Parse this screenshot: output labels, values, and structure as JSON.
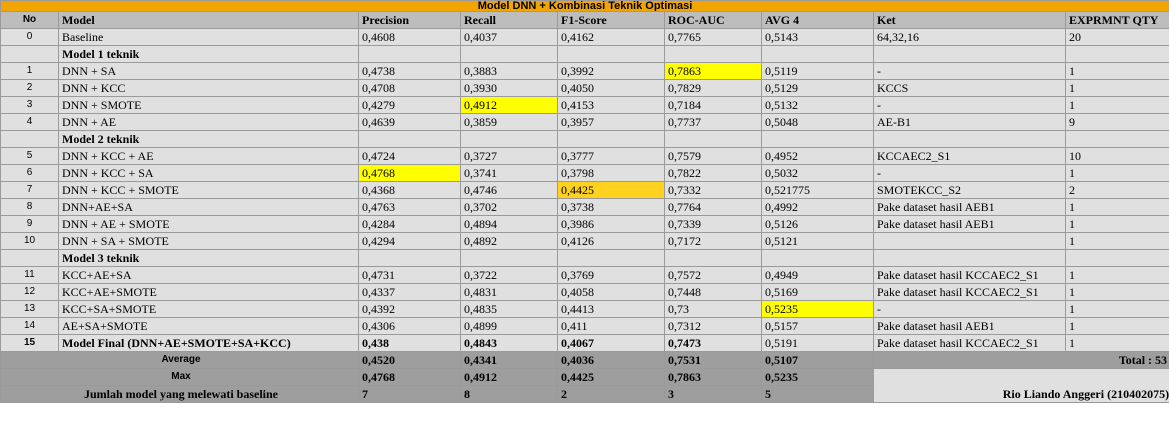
{
  "title": "Model DNN + Kombinasi Teknik Optimasi",
  "headers": {
    "no": "No",
    "model": "Model",
    "precision": "Precision",
    "recall": "Recall",
    "f1": "F1-Score",
    "rocauc": "ROC-AUC",
    "avg4": "AVG 4",
    "ket": "Ket",
    "qty": "EXPRMNT QTY"
  },
  "baseline": {
    "no": "0",
    "model": "Baseline",
    "precision": "0,4608",
    "recall": "0,4037",
    "f1": "0,4162",
    "rocauc": "0,7765",
    "avg4": "0,5143",
    "ket": "64,32,16",
    "qty": "20"
  },
  "sections": {
    "s1": "Model 1 teknik",
    "s2": "Model 2 teknik",
    "s3": "Model 3 teknik"
  },
  "rows": [
    {
      "no": "1",
      "model": "DNN + SA",
      "precision": "0,4738",
      "recall": "0,3883",
      "f1": "0,3992",
      "rocauc": "0,7863",
      "avg4": "0,5119",
      "ket": "-",
      "qty": "1"
    },
    {
      "no": "2",
      "model": "DNN + KCC",
      "precision": "0,4708",
      "recall": "0,3930",
      "f1": "0,4050",
      "rocauc": "0,7829",
      "avg4": "0,5129",
      "ket": "KCCS",
      "qty": "1"
    },
    {
      "no": "3",
      "model": "DNN + SMOTE",
      "precision": "0,4279",
      "recall": "0,4912",
      "f1": "0,4153",
      "rocauc": "0,7184",
      "avg4": "0,5132",
      "ket": "-",
      "qty": "1"
    },
    {
      "no": "4",
      "model": "DNN + AE",
      "precision": "0,4639",
      "recall": "0,3859",
      "f1": "0,3957",
      "rocauc": "0,7737",
      "avg4": "0,5048",
      "ket": "AE-B1",
      "qty": "9"
    },
    {
      "no": "5",
      "model": "DNN + KCC + AE",
      "precision": "0,4724",
      "recall": "0,3727",
      "f1": "0,3777",
      "rocauc": "0,7579",
      "avg4": "0,4952",
      "ket": "KCCAEC2_S1",
      "qty": "10"
    },
    {
      "no": "6",
      "model": "DNN + KCC + SA",
      "precision": "0,4768",
      "recall": "0,3741",
      "f1": "0,3798",
      "rocauc": "0,7822",
      "avg4": "0,5032",
      "ket": "-",
      "qty": "1"
    },
    {
      "no": "7",
      "model": "DNN + KCC + SMOTE",
      "precision": "0,4368",
      "recall": "0,4746",
      "f1": "0,4425",
      "rocauc": "0,7332",
      "avg4": "0,521775",
      "ket": "SMOTEKCC_S2",
      "qty": "2"
    },
    {
      "no": "8",
      "model": "DNN+AE+SA",
      "precision": "0,4763",
      "recall": "0,3702",
      "f1": "0,3738",
      "rocauc": "0,7764",
      "avg4": "0,4992",
      "ket": "Pake dataset hasil AEB1",
      "qty": "1"
    },
    {
      "no": "9",
      "model": "DNN + AE + SMOTE",
      "precision": "0,4284",
      "recall": "0,4894",
      "f1": "0,3986",
      "rocauc": "0,7339",
      "avg4": "0,5126",
      "ket": "Pake dataset hasil AEB1",
      "qty": "1"
    },
    {
      "no": "10",
      "model": "DNN + SA + SMOTE",
      "precision": "0,4294",
      "recall": "0,4892",
      "f1": "0,4126",
      "rocauc": "0,7172",
      "avg4": "0,5121",
      "ket": "",
      "qty": "1"
    },
    {
      "no": "11",
      "model": "KCC+AE+SA",
      "precision": "0,4731",
      "recall": "0,3722",
      "f1": "0,3769",
      "rocauc": "0,7572",
      "avg4": "0,4949",
      "ket": "Pake dataset hasil KCCAEC2_S1",
      "qty": "1"
    },
    {
      "no": "12",
      "model": "KCC+AE+SMOTE",
      "precision": "0,4337",
      "recall": "0,4831",
      "f1": "0,4058",
      "rocauc": "0,7448",
      "avg4": "0,5169",
      "ket": "Pake dataset hasil KCCAEC2_S1",
      "qty": "1"
    },
    {
      "no": "13",
      "model": "KCC+SA+SMOTE",
      "precision": "0,4392",
      "recall": "0,4835",
      "f1": "0,4413",
      "rocauc": "0,73",
      "avg4": "0,5235",
      "ket": "-",
      "qty": "1"
    },
    {
      "no": "14",
      "model": "AE+SA+SMOTE",
      "precision": "0,4306",
      "recall": "0,4899",
      "f1": "0,411",
      "rocauc": "0,7312",
      "avg4": "0,5157",
      "ket": "Pake dataset hasil AEB1",
      "qty": "1"
    },
    {
      "no": "15",
      "model": "Model  Final (DNN+AE+SMOTE+SA+KCC)",
      "precision": "0,438",
      "recall": "0,4843",
      "f1": "0,4067",
      "rocauc": "0,7473",
      "avg4": "0,5191",
      "ket": "Pake dataset hasil KCCAEC2_S1",
      "qty": "1"
    }
  ],
  "summary": {
    "average": {
      "label": "Average",
      "precision": "0,4520",
      "recall": "0,4341",
      "f1": "0,4036",
      "rocauc": "0,7531",
      "avg4": "0,5107"
    },
    "max": {
      "label": "Max",
      "precision": "0,4768",
      "recall": "0,4912",
      "f1": "0,4425",
      "rocauc": "0,7863",
      "avg4": "0,5235"
    },
    "count": {
      "label": "Jumlah model yang melewati baseline",
      "precision": "7",
      "recall": "8",
      "f1": "2",
      "rocauc": "3",
      "avg4": "5"
    },
    "total": "Total : 53",
    "author": "Rio Liando Anggeri (210402075)"
  },
  "colors": {
    "title_bg": "#f2a400",
    "highlight": "#ffff00",
    "highlight_orange": "#ffd21f",
    "header_bg": "#bdbdbd",
    "cell_bg": "#e0e0e0",
    "summary_bg": "#9e9e9e"
  }
}
